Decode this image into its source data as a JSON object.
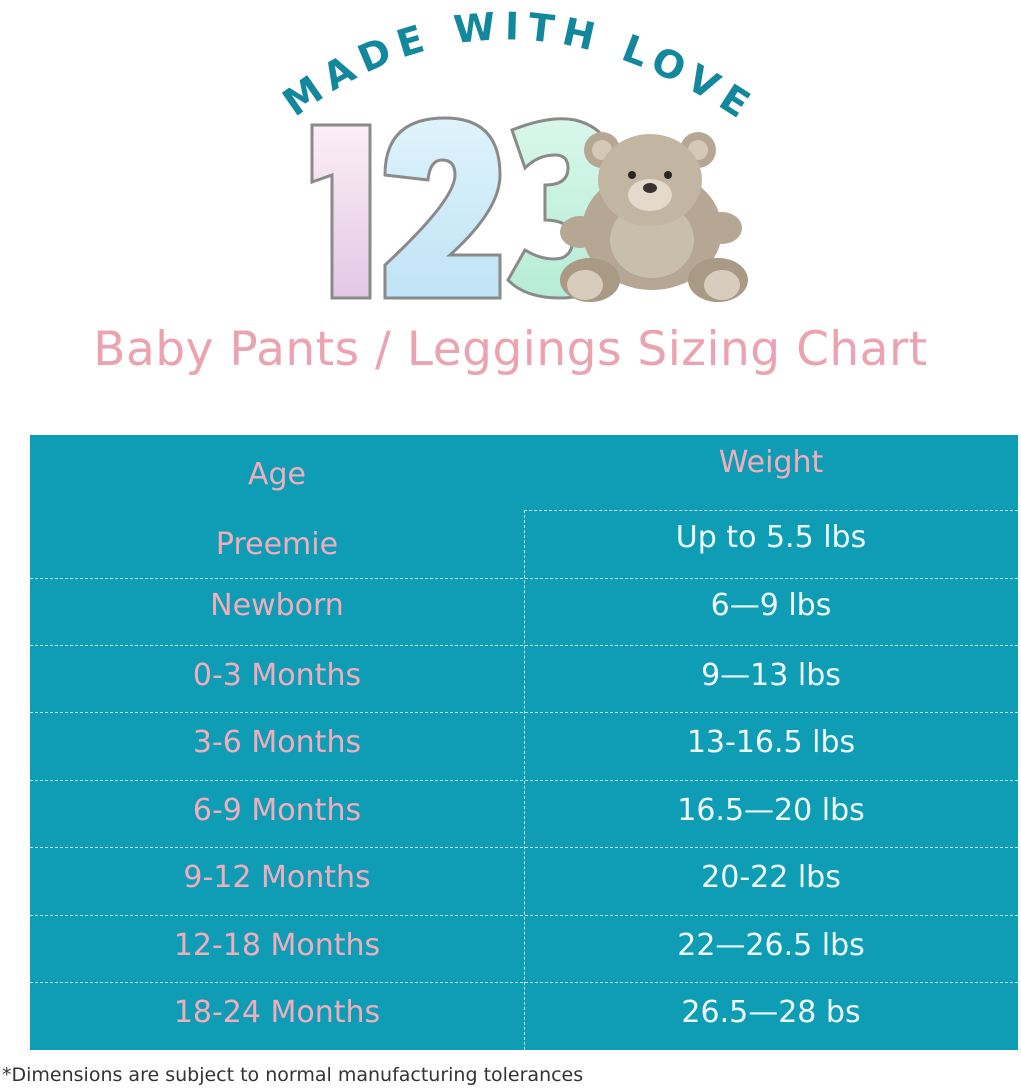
{
  "logo": {
    "tagline": "MADE WITH LOVE",
    "numbers": "123",
    "mascot": "teddy-bear",
    "tagline_color": "#13889d"
  },
  "title": "Baby Pants / Leggings Sizing Chart",
  "table": {
    "headers": {
      "age": "Age",
      "weight": "Weight"
    },
    "rows": [
      {
        "age": "Preemie",
        "weight": "Up to 5.5 lbs"
      },
      {
        "age": "Newborn",
        "weight": "6—9 lbs"
      },
      {
        "age": "0-3 Months",
        "weight": "9—13 lbs"
      },
      {
        "age": "3-6 Months",
        "weight": "13-16.5 lbs"
      },
      {
        "age": "6-9 Months",
        "weight": "16.5—20 lbs"
      },
      {
        "age": "9-12 Months",
        "weight": "20-22 lbs"
      },
      {
        "age": "12-18 Months",
        "weight": "22—26.5 lbs"
      },
      {
        "age": "18-24 Months",
        "weight": "26.5—28 bs"
      }
    ],
    "colors": {
      "background": "#0f9db6",
      "age_text": "#f0aebd",
      "weight_text": "#eefaff"
    }
  },
  "footnote": "*Dimensions are subject to normal manufacturing tolerances"
}
